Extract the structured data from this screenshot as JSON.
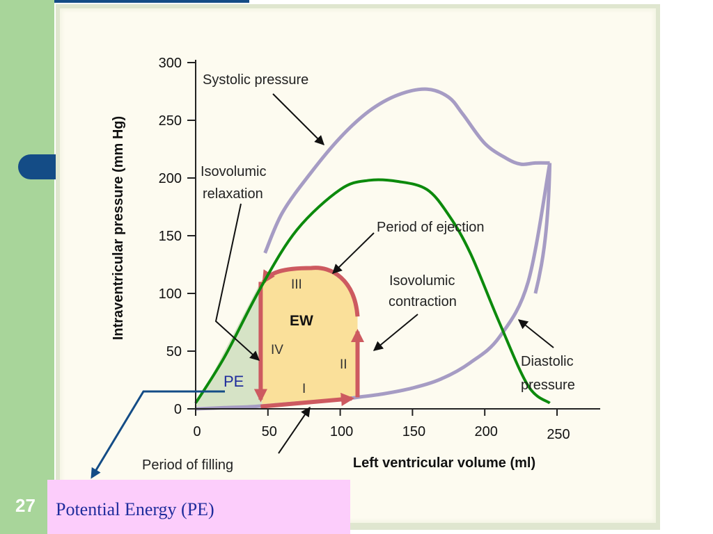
{
  "slide": {
    "page_number": "27",
    "callout_text": "Potential Energy (PE)"
  },
  "colors": {
    "sidebar": "#a8d59a",
    "accent_blue": "#144c86",
    "panel_bg": "#fdfbf0",
    "loop_fill": "#fae09a",
    "pe_fill": "#d6e3c6",
    "phase_arrow": "#cd5a60",
    "pressure_curve": "#a69cc4",
    "green_curve": "#0c8a0c",
    "callout_bg": "#fccdfb",
    "callout_text": "#1f2c9c"
  },
  "chart_data": {
    "type": "line",
    "xlabel": "Left ventricular volume (ml)",
    "ylabel": "Intraventricular pressure (mm Hg)",
    "xlim": [
      0,
      250
    ],
    "ylim": [
      0,
      300
    ],
    "xticks": [
      "0",
      "50",
      "100",
      "150",
      "200",
      "250"
    ],
    "yticks": [
      "0",
      "50",
      "100",
      "150",
      "200",
      "250",
      "300"
    ],
    "series": [
      {
        "name": "Systolic pressure",
        "x": [
          48,
          60,
          80,
          100,
          120,
          140,
          160,
          175,
          185,
          200,
          215,
          225,
          235,
          245
        ],
        "y": [
          135,
          170,
          205,
          235,
          258,
          272,
          277,
          270,
          255,
          230,
          217,
          212,
          213,
          213
        ]
      },
      {
        "name": "Diastolic pressure",
        "x": [
          0,
          20,
          40,
          60,
          80,
          100,
          112,
          130,
          150,
          170,
          190,
          210,
          230,
          245
        ],
        "y": [
          0,
          1,
          2,
          4,
          6,
          8,
          10,
          13,
          18,
          26,
          40,
          62,
          110,
          213
        ]
      },
      {
        "name": "",
        "x": [
          0,
          20,
          45,
          70,
          100,
          120,
          140,
          160,
          175,
          190,
          210,
          230,
          245
        ],
        "y": [
          5,
          45,
          105,
          155,
          190,
          198,
          197,
          190,
          168,
          135,
          75,
          20,
          5
        ]
      }
    ],
    "pv_loop": {
      "phases": [
        {
          "label": "I",
          "from": [
            45,
            2
          ],
          "to": [
            112,
            10
          ]
        },
        {
          "label": "II",
          "from": [
            112,
            10
          ],
          "to": [
            112,
            67
          ]
        },
        {
          "label": "III",
          "from": [
            112,
            80
          ],
          "to": [
            47,
            110
          ]
        },
        {
          "label": "IV",
          "from": [
            45,
            110
          ],
          "to": [
            45,
            8
          ]
        }
      ],
      "area_labels": [
        "EW",
        "PE"
      ]
    },
    "annotations": [
      "Systolic pressure",
      "Isovolumic relaxation",
      "Period of ejection",
      "Isovolumic contraction",
      "Diastolic pressure",
      "Period of filling"
    ]
  }
}
